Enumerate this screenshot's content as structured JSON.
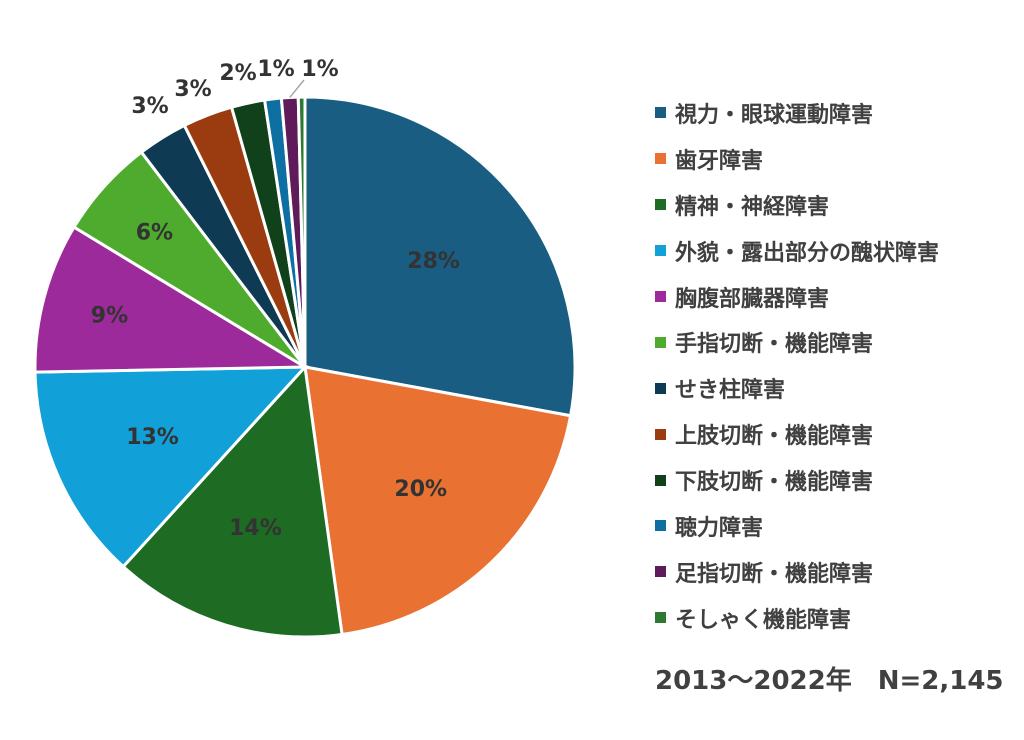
{
  "chart_data": {
    "type": "pie",
    "categories": [
      "視力・眼球運動障害",
      "歯牙障害",
      "精神・神経障害",
      "外貌・露出部分の醜状障害",
      "胸腹部臓器障害",
      "手指切断・機能障害",
      "せき柱障害",
      "上肢切断・機能障害",
      "下肢切断・機能障害",
      "聴力障害",
      "足指切断・機能障害",
      "そしゃく機能障害"
    ],
    "values": [
      28,
      20,
      14,
      13,
      9,
      6,
      3,
      3,
      2,
      1,
      1,
      0
    ],
    "data_labels": [
      "28%",
      "20%",
      "14%",
      "13%",
      "9%",
      "6%",
      "3%",
      "3%",
      "2%",
      "1%",
      "1%",
      ""
    ],
    "colors": [
      "#1a5d82",
      "#e97132",
      "#1e6b24",
      "#12a0d8",
      "#9c2a9a",
      "#4eab2e",
      "#0f3a53",
      "#9a3c0f",
      "#10411a",
      "#0d6fa2",
      "#5f1a5a",
      "#2c7a30"
    ],
    "legend_position": "right",
    "footnote": "2013～2022年　N=2,145"
  }
}
